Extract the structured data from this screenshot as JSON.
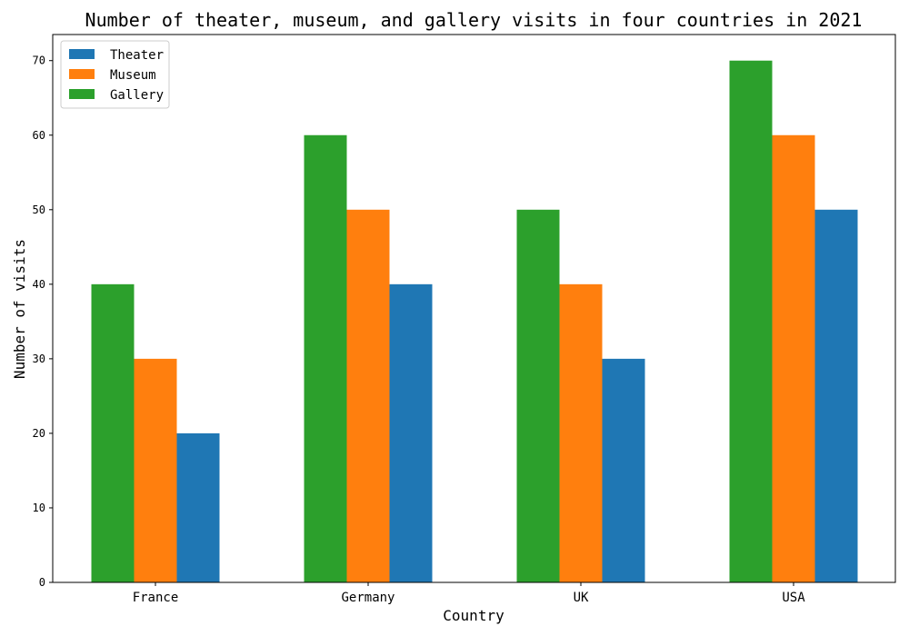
{
  "chart_data": {
    "type": "bar",
    "title": "Number of theater, museum, and gallery visits in four countries in 2021",
    "xlabel": "Country",
    "ylabel": "Number of visits",
    "categories": [
      "France",
      "Germany",
      "UK",
      "USA"
    ],
    "series": [
      {
        "name": "Theater",
        "values": [
          20,
          40,
          30,
          50
        ],
        "color": "#1f77b4"
      },
      {
        "name": "Museum",
        "values": [
          30,
          50,
          40,
          60
        ],
        "color": "#ff7f0e"
      },
      {
        "name": "Gallery",
        "values": [
          40,
          60,
          50,
          70
        ],
        "color": "#2ca02c"
      }
    ],
    "bar_order_within_group": [
      "Gallery",
      "Museum",
      "Theater"
    ],
    "ylim": [
      0,
      73.5
    ],
    "yticks": [
      0,
      10,
      20,
      30,
      40,
      50,
      60,
      70
    ],
    "grid": false,
    "legend_position": "top-left"
  }
}
